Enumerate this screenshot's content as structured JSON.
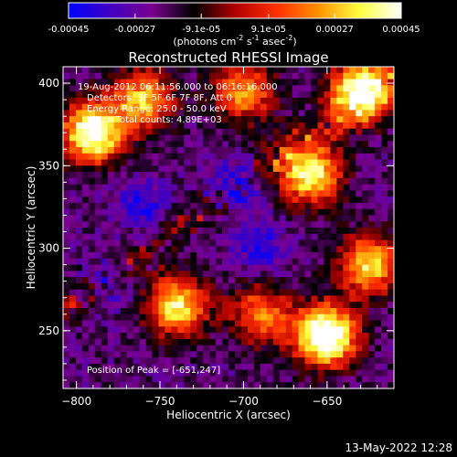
{
  "colorbar": {
    "ticks": [
      "-0.00045",
      "-0.00027",
      "-9.1e-05",
      "9.1e-05",
      "0.00027",
      "0.00045"
    ],
    "tick_values": [
      -0.00045,
      -0.00027,
      -9.1e-05,
      9.1e-05,
      0.00027,
      0.00045
    ],
    "range": [
      -0.00045,
      0.00045
    ],
    "units_main": "(photons cm",
    "units_exp1": "-2",
    "units_mid": " s",
    "units_exp2": "-1",
    "units_tail": " asec",
    "units_exp3": "-2",
    "units_close": ")",
    "colormap": [
      "#0000ff",
      "#4000c0",
      "#7a0090",
      "#000000",
      "#b00000",
      "#ff3000",
      "#ff9000",
      "#ffff40",
      "#ffffff"
    ]
  },
  "chart_data": {
    "type": "heatmap",
    "title": "Reconstructed RHESSI Image",
    "xlabel": "Heliocentric X (arcsec)",
    "ylabel": "Heliocentric Y (arcsec)",
    "xlim": [
      -808,
      -610
    ],
    "ylim": [
      215,
      410
    ],
    "xticks": [
      -800,
      -750,
      -700,
      -650
    ],
    "xtick_labels": [
      "−800",
      "−750",
      "−700",
      "−650"
    ],
    "yticks": [
      250,
      300,
      350,
      400
    ],
    "ytick_labels": [
      "250",
      "300",
      "350",
      "400"
    ],
    "grid": false,
    "hot_spots": [
      {
        "x": -651,
        "y": 247,
        "strength": 1.0
      },
      {
        "x": -790,
        "y": 370,
        "strength": 0.9
      },
      {
        "x": -630,
        "y": 395,
        "strength": 0.85
      },
      {
        "x": -660,
        "y": 345,
        "strength": 0.75
      },
      {
        "x": -760,
        "y": 390,
        "strength": 0.6
      },
      {
        "x": -740,
        "y": 265,
        "strength": 0.7
      },
      {
        "x": -625,
        "y": 290,
        "strength": 0.65
      },
      {
        "x": -690,
        "y": 260,
        "strength": 0.5
      },
      {
        "x": -700,
        "y": 395,
        "strength": 0.55
      }
    ],
    "cold_spots": [
      {
        "x": -705,
        "y": 338,
        "strength": 0.7
      },
      {
        "x": -760,
        "y": 325,
        "strength": 0.5
      },
      {
        "x": -690,
        "y": 300,
        "strength": 0.45
      },
      {
        "x": -780,
        "y": 280,
        "strength": 0.4
      }
    ],
    "annotations": {
      "time": "19-Aug-2012 06:11:56.000 to 06:16:16.000",
      "detectors": "Detectors: 3F 5F 6F 7F 8F, Att 0",
      "energy": "Energy Range: 25.0 - 50.0 keV",
      "clean": "Clean     Total counts: 4.89E+03",
      "peak": "Position of Peak = [-651,247]"
    }
  },
  "footer": {
    "date": "13-May-2022 12:28"
  }
}
